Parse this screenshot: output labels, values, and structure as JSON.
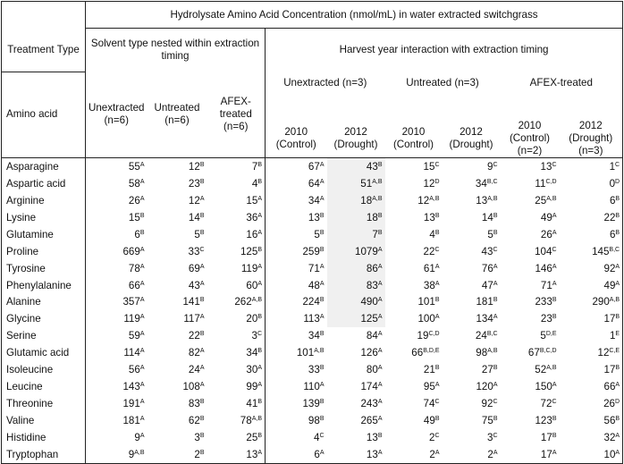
{
  "table": {
    "title": "Hydrolysate Amino Acid Concentration (nmol/mL) in water extracted switchgrass",
    "treatment_type_label": "Treatment Type",
    "solvent_group_label": "Solvent type nested within extraction timing",
    "harvest_group_label": "Harvest year interaction with extraction timing",
    "amino_acid_label": "Amino acid",
    "solvent_headers": [
      "Unextracted (n=6)",
      "Untreated (n=6)",
      "AFEX-treated (n=6)"
    ],
    "harvest_subgroups": [
      "Unextracted (n=3)",
      "Untreated (n=3)",
      "AFEX-treated"
    ],
    "harvest_headers": [
      "2010 (Control)",
      "2012 (Drought)",
      "2010 (Control)",
      "2012 (Drought)",
      "2010 (Control) (n=2)",
      "2012 (Drought) (n=3)"
    ],
    "rows": [
      {
        "name": "Asparagine",
        "cells": [
          {
            "v": "55",
            "s": "A"
          },
          {
            "v": "12",
            "s": "B"
          },
          {
            "v": "7",
            "s": "B"
          },
          {
            "v": "67",
            "s": "A"
          },
          {
            "v": "43",
            "s": "B"
          },
          {
            "v": "15",
            "s": "C"
          },
          {
            "v": "9",
            "s": "C"
          },
          {
            "v": "13",
            "s": "C"
          },
          {
            "v": "1",
            "s": "C"
          }
        ]
      },
      {
        "name": "Aspartic acid",
        "cells": [
          {
            "v": "58",
            "s": "A"
          },
          {
            "v": "23",
            "s": "B"
          },
          {
            "v": "4",
            "s": "B"
          },
          {
            "v": "64",
            "s": "A"
          },
          {
            "v": "51",
            "s": "A,B"
          },
          {
            "v": "12",
            "s": "D"
          },
          {
            "v": "34",
            "s": "B,C"
          },
          {
            "v": "11",
            "s": "C,D"
          },
          {
            "v": "0",
            "s": "D"
          }
        ]
      },
      {
        "name": "Arginine",
        "cells": [
          {
            "v": "26",
            "s": "A"
          },
          {
            "v": "12",
            "s": "A"
          },
          {
            "v": "15",
            "s": "A"
          },
          {
            "v": "34",
            "s": "A"
          },
          {
            "v": "18",
            "s": "A,B"
          },
          {
            "v": "12",
            "s": "A,B"
          },
          {
            "v": "13",
            "s": "A,B"
          },
          {
            "v": "25",
            "s": "A,B"
          },
          {
            "v": "6",
            "s": "B"
          }
        ]
      },
      {
        "name": "Lysine",
        "cells": [
          {
            "v": "15",
            "s": "B"
          },
          {
            "v": "14",
            "s": "B"
          },
          {
            "v": "36",
            "s": "A"
          },
          {
            "v": "13",
            "s": "B"
          },
          {
            "v": "18",
            "s": "B"
          },
          {
            "v": "13",
            "s": "B"
          },
          {
            "v": "14",
            "s": "B"
          },
          {
            "v": "49",
            "s": "A"
          },
          {
            "v": "22",
            "s": "B"
          }
        ]
      },
      {
        "name": "Glutamine",
        "cells": [
          {
            "v": "6",
            "s": "B"
          },
          {
            "v": "5",
            "s": "B"
          },
          {
            "v": "16",
            "s": "A"
          },
          {
            "v": "5",
            "s": "B"
          },
          {
            "v": "7",
            "s": "B"
          },
          {
            "v": "4",
            "s": "B"
          },
          {
            "v": "5",
            "s": "B"
          },
          {
            "v": "26",
            "s": "A"
          },
          {
            "v": "6",
            "s": "B"
          }
        ]
      },
      {
        "name": "Proline",
        "cells": [
          {
            "v": "669",
            "s": "A"
          },
          {
            "v": "33",
            "s": "C"
          },
          {
            "v": "125",
            "s": "B"
          },
          {
            "v": "259",
            "s": "B"
          },
          {
            "v": "1079",
            "s": "A"
          },
          {
            "v": "22",
            "s": "C"
          },
          {
            "v": "43",
            "s": "C"
          },
          {
            "v": "104",
            "s": "C"
          },
          {
            "v": "145",
            "s": "B,C"
          }
        ]
      },
      {
        "name": "Tyrosine",
        "cells": [
          {
            "v": "78",
            "s": "A"
          },
          {
            "v": "69",
            "s": "A"
          },
          {
            "v": "119",
            "s": "A"
          },
          {
            "v": "71",
            "s": "A"
          },
          {
            "v": "86",
            "s": "A"
          },
          {
            "v": "61",
            "s": "A"
          },
          {
            "v": "76",
            "s": "A"
          },
          {
            "v": "146",
            "s": "A"
          },
          {
            "v": "92",
            "s": "A"
          }
        ]
      },
      {
        "name": "Phenylalanine",
        "cells": [
          {
            "v": "66",
            "s": "A"
          },
          {
            "v": "43",
            "s": "A"
          },
          {
            "v": "60",
            "s": "A"
          },
          {
            "v": "48",
            "s": "A"
          },
          {
            "v": "83",
            "s": "A"
          },
          {
            "v": "38",
            "s": "A"
          },
          {
            "v": "47",
            "s": "A"
          },
          {
            "v": "71",
            "s": "A"
          },
          {
            "v": "49",
            "s": "A"
          }
        ]
      },
      {
        "name": "Alanine",
        "cells": [
          {
            "v": "357",
            "s": "A"
          },
          {
            "v": "141",
            "s": "B"
          },
          {
            "v": "262",
            "s": "A,B"
          },
          {
            "v": "224",
            "s": "B"
          },
          {
            "v": "490",
            "s": "A"
          },
          {
            "v": "101",
            "s": "B"
          },
          {
            "v": "181",
            "s": "B"
          },
          {
            "v": "233",
            "s": "B"
          },
          {
            "v": "290",
            "s": "A,B"
          }
        ]
      },
      {
        "name": "Glycine",
        "cells": [
          {
            "v": "119",
            "s": "A"
          },
          {
            "v": "117",
            "s": "A"
          },
          {
            "v": "20",
            "s": "B"
          },
          {
            "v": "113",
            "s": "A"
          },
          {
            "v": "125",
            "s": "A"
          },
          {
            "v": "100",
            "s": "A"
          },
          {
            "v": "134",
            "s": "A"
          },
          {
            "v": "23",
            "s": "B"
          },
          {
            "v": "17",
            "s": "B"
          }
        ]
      },
      {
        "name": "Serine",
        "cells": [
          {
            "v": "59",
            "s": "A"
          },
          {
            "v": "22",
            "s": "B"
          },
          {
            "v": "3",
            "s": "C"
          },
          {
            "v": "34",
            "s": "B"
          },
          {
            "v": "84",
            "s": "A"
          },
          {
            "v": "19",
            "s": "C,D"
          },
          {
            "v": "24",
            "s": "B,C"
          },
          {
            "v": "5",
            "s": "D,E"
          },
          {
            "v": "1",
            "s": "E"
          }
        ]
      },
      {
        "name": "Glutamic acid",
        "cells": [
          {
            "v": "114",
            "s": "A"
          },
          {
            "v": "82",
            "s": "A"
          },
          {
            "v": "34",
            "s": "B"
          },
          {
            "v": "101",
            "s": "A,B"
          },
          {
            "v": "126",
            "s": "A"
          },
          {
            "v": "66",
            "s": "B,D,E"
          },
          {
            "v": "98",
            "s": "A,B"
          },
          {
            "v": "67",
            "s": "B,C,D"
          },
          {
            "v": "12",
            "s": "C,E"
          }
        ]
      },
      {
        "name": "Isoleucine",
        "cells": [
          {
            "v": "56",
            "s": "A"
          },
          {
            "v": "24",
            "s": "A"
          },
          {
            "v": "30",
            "s": "A"
          },
          {
            "v": "33",
            "s": "B"
          },
          {
            "v": "80",
            "s": "A"
          },
          {
            "v": "21",
            "s": "B"
          },
          {
            "v": "27",
            "s": "B"
          },
          {
            "v": "52",
            "s": "A,B"
          },
          {
            "v": "17",
            "s": "B"
          }
        ]
      },
      {
        "name": "Leucine",
        "cells": [
          {
            "v": "143",
            "s": "A"
          },
          {
            "v": "108",
            "s": "A"
          },
          {
            "v": "99",
            "s": "A"
          },
          {
            "v": "110",
            "s": "A"
          },
          {
            "v": "174",
            "s": "A"
          },
          {
            "v": "95",
            "s": "A"
          },
          {
            "v": "120",
            "s": "A"
          },
          {
            "v": "150",
            "s": "A"
          },
          {
            "v": "66",
            "s": "A"
          }
        ]
      },
      {
        "name": "Threonine",
        "cells": [
          {
            "v": "191",
            "s": "A"
          },
          {
            "v": "83",
            "s": "B"
          },
          {
            "v": "41",
            "s": "B"
          },
          {
            "v": "139",
            "s": "B"
          },
          {
            "v": "243",
            "s": "A"
          },
          {
            "v": "74",
            "s": "C"
          },
          {
            "v": "92",
            "s": "C"
          },
          {
            "v": "72",
            "s": "C"
          },
          {
            "v": "26",
            "s": "D"
          }
        ]
      },
      {
        "name": "Valine",
        "cells": [
          {
            "v": "181",
            "s": "A"
          },
          {
            "v": "62",
            "s": "B"
          },
          {
            "v": "78",
            "s": "A,B"
          },
          {
            "v": "98",
            "s": "B"
          },
          {
            "v": "265",
            "s": "A"
          },
          {
            "v": "49",
            "s": "B"
          },
          {
            "v": "75",
            "s": "B"
          },
          {
            "v": "123",
            "s": "B"
          },
          {
            "v": "56",
            "s": "B"
          }
        ]
      },
      {
        "name": "Histidine",
        "cells": [
          {
            "v": "9",
            "s": "A"
          },
          {
            "v": "3",
            "s": "B"
          },
          {
            "v": "25",
            "s": "B"
          },
          {
            "v": "4",
            "s": "C"
          },
          {
            "v": "13",
            "s": "B"
          },
          {
            "v": "2",
            "s": "C"
          },
          {
            "v": "3",
            "s": "C"
          },
          {
            "v": "17",
            "s": "B"
          },
          {
            "v": "32",
            "s": "A"
          }
        ]
      },
      {
        "name": "Tryptophan",
        "cells": [
          {
            "v": "9",
            "s": "A,B"
          },
          {
            "v": "2",
            "s": "B"
          },
          {
            "v": "13",
            "s": "A"
          },
          {
            "v": "6",
            "s": "A"
          },
          {
            "v": "13",
            "s": "A"
          },
          {
            "v": "2",
            "s": "A"
          },
          {
            "v": "2",
            "s": "A"
          },
          {
            "v": "17",
            "s": "A"
          },
          {
            "v": "10",
            "s": "A"
          }
        ]
      }
    ]
  }
}
